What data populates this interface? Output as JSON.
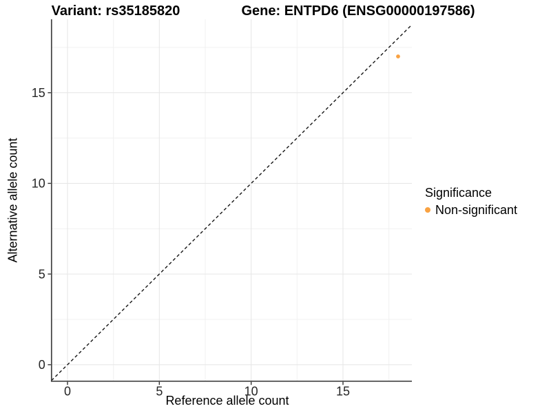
{
  "chart_data": {
    "type": "scatter",
    "variant_title": "Variant: rs35185820",
    "gene_title": "Gene: ENTPD6 (ENSG00000197586)",
    "xlabel": "Reference allele count",
    "ylabel": "Alternative allele count",
    "x_ticks": [
      0,
      5,
      10,
      15
    ],
    "y_ticks": [
      0,
      5,
      10,
      15
    ],
    "minor_breaks": [
      2.5,
      7.5,
      12.5,
      17.5
    ],
    "xlim": [
      -0.87,
      18.75
    ],
    "ylim": [
      -0.91,
      19.05
    ],
    "grid": true,
    "points": [
      {
        "x": 18,
        "y": 17,
        "series": "Non-significant"
      }
    ],
    "reference_line": {
      "slope": 1,
      "intercept": 0,
      "style": "dashed",
      "color": "#141414"
    },
    "legend": {
      "title": "Significance",
      "position": "right",
      "items": [
        {
          "label": "Non-significant",
          "color": "#F9A242"
        }
      ]
    },
    "colors": {
      "point": "#F9A242",
      "axis_line": "#404040",
      "tick_mark": "#333333",
      "tick_label": "#262626",
      "grid_major": "#E7E7E7",
      "grid_minor": "#F1F1F1"
    }
  }
}
